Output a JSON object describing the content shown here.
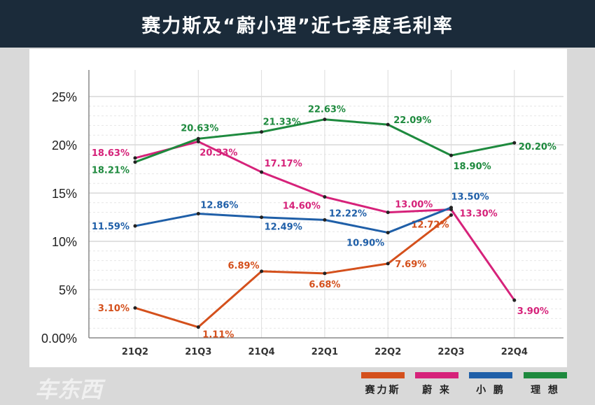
{
  "title": "赛力斯及“蔚小理”近七季度毛利率",
  "chart_data": {
    "type": "line",
    "title": "赛力斯及“蔚小理”近七季度毛利率",
    "categories": [
      "21Q2",
      "21Q3",
      "21Q4",
      "22Q1",
      "22Q2",
      "22Q3",
      "22Q4"
    ],
    "y_ticks": [
      "0.00%",
      "5%",
      "10%",
      "15%",
      "20%",
      "25%"
    ],
    "y_tick_values": [
      0,
      5,
      10,
      15,
      20,
      25
    ],
    "ylim": [
      0,
      25
    ],
    "grid": true,
    "legend_position": "bottom-right",
    "series": [
      {
        "name": "赛力斯",
        "color": "#d4501c",
        "values": [
          3.1,
          1.11,
          6.89,
          6.68,
          7.69,
          12.72,
          null
        ],
        "labels": [
          "3.10%",
          "1.11%",
          "6.89%",
          "6.68%",
          "7.69%",
          "12.72%",
          null
        ]
      },
      {
        "name": "蔚来",
        "color": "#d6227a",
        "values": [
          18.63,
          20.33,
          17.17,
          14.6,
          13.0,
          13.3,
          3.9
        ],
        "labels": [
          "18.63%",
          "20.33%",
          "17.17%",
          "14.60%",
          "13.00%",
          "13.30%",
          "3.90%"
        ]
      },
      {
        "name": "小鹏",
        "color": "#1f5fa8",
        "values": [
          11.59,
          12.86,
          12.49,
          12.22,
          10.9,
          13.5,
          null
        ],
        "labels": [
          "11.59%",
          "12.86%",
          "12.49%",
          "12.22%",
          "10.90%",
          "13.50%",
          null
        ]
      },
      {
        "name": "理想",
        "color": "#1e8a3e",
        "values": [
          18.21,
          20.63,
          21.33,
          22.63,
          22.09,
          18.9,
          20.2
        ],
        "labels": [
          "18.21%",
          "20.63%",
          "21.33%",
          "22.63%",
          "22.09%",
          "18.90%",
          "20.20%"
        ]
      }
    ]
  },
  "legend_labels": [
    "赛力斯",
    "蔚 来",
    "小 鹏",
    "理 想"
  ],
  "watermark": "车东西"
}
